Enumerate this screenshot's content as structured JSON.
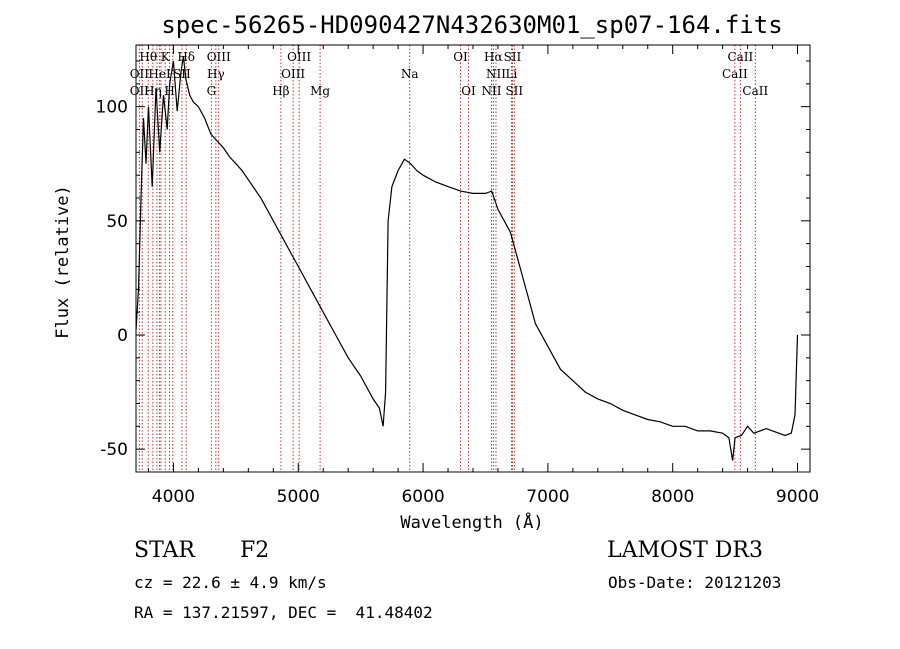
{
  "chart_data": {
    "type": "line",
    "title": "spec-56265-HD090427N432630M01_sp07-164.fits",
    "xlabel": "Wavelength (Å)",
    "ylabel": "Flux (relative)",
    "xlim": [
      3700,
      9100
    ],
    "ylim": [
      -60,
      127
    ],
    "xticks": [
      4000,
      5000,
      6000,
      7000,
      8000,
      9000
    ],
    "yticks": [
      -50,
      0,
      50,
      100
    ],
    "grid": false,
    "line_color": "#000000",
    "marker_color": "#b22222",
    "series": [
      {
        "x": [
          3700,
          3720,
          3740,
          3760,
          3780,
          3800,
          3830,
          3860,
          3890,
          3920,
          3950,
          3970,
          4000,
          4030,
          4060,
          4080,
          4100,
          4130,
          4160,
          4200,
          4250,
          4300,
          4350,
          4400,
          4450,
          4500,
          4550,
          4600,
          4650,
          4700,
          4750,
          4800,
          4850,
          4900,
          4950,
          5000,
          5100,
          5200,
          5300,
          5400,
          5500,
          5600,
          5650,
          5680,
          5700,
          5720,
          5750,
          5800,
          5850,
          5900,
          5950,
          6000,
          6100,
          6200,
          6300,
          6400,
          6500,
          6550,
          6600,
          6650,
          6700,
          6750,
          6800,
          6850,
          6900,
          7000,
          7100,
          7200,
          7300,
          7400,
          7500,
          7600,
          7700,
          7800,
          7900,
          8000,
          8100,
          8200,
          8300,
          8400,
          8450,
          8480,
          8500,
          8550,
          8600,
          8650,
          8700,
          8750,
          8800,
          8850,
          8900,
          8950,
          8980,
          9000
        ],
        "y": [
          2,
          20,
          60,
          95,
          75,
          100,
          65,
          108,
          80,
          105,
          90,
          110,
          120,
          98,
          115,
          122,
          112,
          105,
          102,
          100,
          95,
          88,
          85,
          82,
          78,
          75,
          72,
          68,
          64,
          60,
          55,
          50,
          45,
          40,
          35,
          30,
          20,
          10,
          0,
          -10,
          -18,
          -28,
          -32,
          -40,
          -25,
          50,
          65,
          72,
          77,
          75,
          72,
          70,
          67,
          65,
          63,
          62,
          62,
          63,
          55,
          50,
          45,
          35,
          25,
          15,
          5,
          -5,
          -15,
          -20,
          -25,
          -28,
          -30,
          -33,
          -35,
          -37,
          -38,
          -40,
          -40,
          -42,
          -42,
          -43,
          -45,
          -55,
          -45,
          -44,
          -40,
          -43,
          -42,
          -41,
          -42,
          -43,
          -44,
          -43,
          -35,
          0
        ]
      }
    ],
    "spectral_lines": [
      {
        "label": "Hθ",
        "x": 3798,
        "row": 0
      },
      {
        "label": "K",
        "x": 3934,
        "row": 0
      },
      {
        "label": "Hδ",
        "x": 4102,
        "row": 0
      },
      {
        "label": "OIII",
        "x": 4363,
        "row": 0
      },
      {
        "label": "OIII",
        "x": 5007,
        "row": 0
      },
      {
        "label": "OI",
        "x": 6300,
        "row": 0
      },
      {
        "label": "Hα",
        "x": 6563,
        "row": 0
      },
      {
        "label": "SII",
        "x": 6716,
        "row": 0
      },
      {
        "label": "CaII",
        "x": 8542,
        "row": 0
      },
      {
        "label": "OII",
        "x": 3727,
        "row": 1
      },
      {
        "label": "HeI",
        "x": 3889,
        "row": 1
      },
      {
        "label": "SII",
        "x": 4068,
        "row": 1
      },
      {
        "label": "Hγ",
        "x": 4340,
        "row": 1
      },
      {
        "label": "OIII",
        "x": 4959,
        "row": 1
      },
      {
        "label": "Na",
        "x": 5893,
        "row": 1
      },
      {
        "label": "NII",
        "x": 6584,
        "row": 1
      },
      {
        "label": "Li",
        "x": 6708,
        "row": 1
      },
      {
        "label": "CaII",
        "x": 8498,
        "row": 1
      },
      {
        "label": "OII",
        "x": 3727,
        "row": 2
      },
      {
        "label": "Hη",
        "x": 3835,
        "row": 2
      },
      {
        "label": "H",
        "x": 3969,
        "row": 2
      },
      {
        "label": "G",
        "x": 4304,
        "row": 2
      },
      {
        "label": "Hβ",
        "x": 4861,
        "row": 2
      },
      {
        "label": "Mg",
        "x": 5175,
        "row": 2
      },
      {
        "label": "OI",
        "x": 6364,
        "row": 2
      },
      {
        "label": "NII",
        "x": 6548,
        "row": 2
      },
      {
        "label": "SII",
        "x": 6731,
        "row": 2
      },
      {
        "label": "CaII",
        "x": 8662,
        "row": 2
      }
    ],
    "extra_markers": [
      3750,
      3868,
      3900,
      3995
    ]
  },
  "info": {
    "class_label": "STAR",
    "subclass": "F2",
    "survey": "LAMOST DR3",
    "cz_line": "cz = 22.6 ± 4.9 km/s",
    "obs_date": "Obs-Date: 20121203",
    "coords": "RA = 137.21597, DEC =  41.48402"
  }
}
